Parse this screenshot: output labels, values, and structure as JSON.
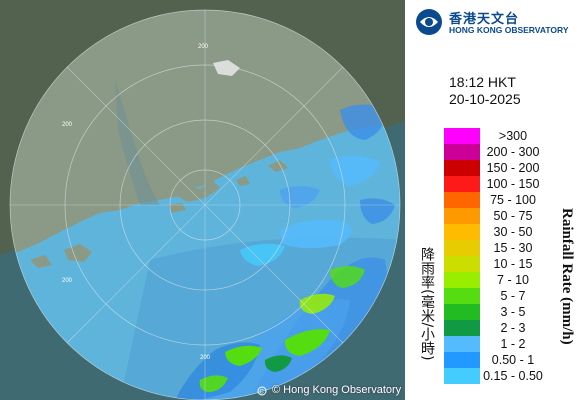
{
  "logo": {
    "chinese_name": "香港天文台",
    "english_name": "HONG KONG OBSERVATORY",
    "mark_icon": "hko-logo-icon"
  },
  "timestamp": {
    "time": "18:12 HKT",
    "date": "20-10-2025"
  },
  "legend": {
    "title_cn": "降雨率(毫米/小時)",
    "title_en": "Rainfall Rate (mm/h)",
    "items": [
      {
        "label": ">300",
        "color": "#ff00ff"
      },
      {
        "label": "200 - 300",
        "color": "#cc0099"
      },
      {
        "label": "150 - 200",
        "color": "#cc0000"
      },
      {
        "label": "100 - 150",
        "color": "#ff1a1a"
      },
      {
        "label": "75 - 100",
        "color": "#ff6600"
      },
      {
        "label": "50 - 75",
        "color": "#ff9900"
      },
      {
        "label": "30 - 50",
        "color": "#ffbb00"
      },
      {
        "label": "15 - 30",
        "color": "#e6cc00"
      },
      {
        "label": "10 - 15",
        "color": "#ccdd00"
      },
      {
        "label": "7 - 10",
        "color": "#99ee00"
      },
      {
        "label": "5 - 7",
        "color": "#55dd11"
      },
      {
        "label": "3 - 5",
        "color": "#22bb22"
      },
      {
        "label": "2 - 3",
        "color": "#119944"
      },
      {
        "label": "1 - 2",
        "color": "#55bbff"
      },
      {
        "label": "0.50 - 1",
        "color": "#2299ff"
      },
      {
        "label": "0.15 - 0.50",
        "color": "#44ccff"
      }
    ]
  },
  "map": {
    "range_rings": [
      "200",
      "200",
      "200",
      "200"
    ],
    "copyright": "© Hong Kong Observatory"
  }
}
